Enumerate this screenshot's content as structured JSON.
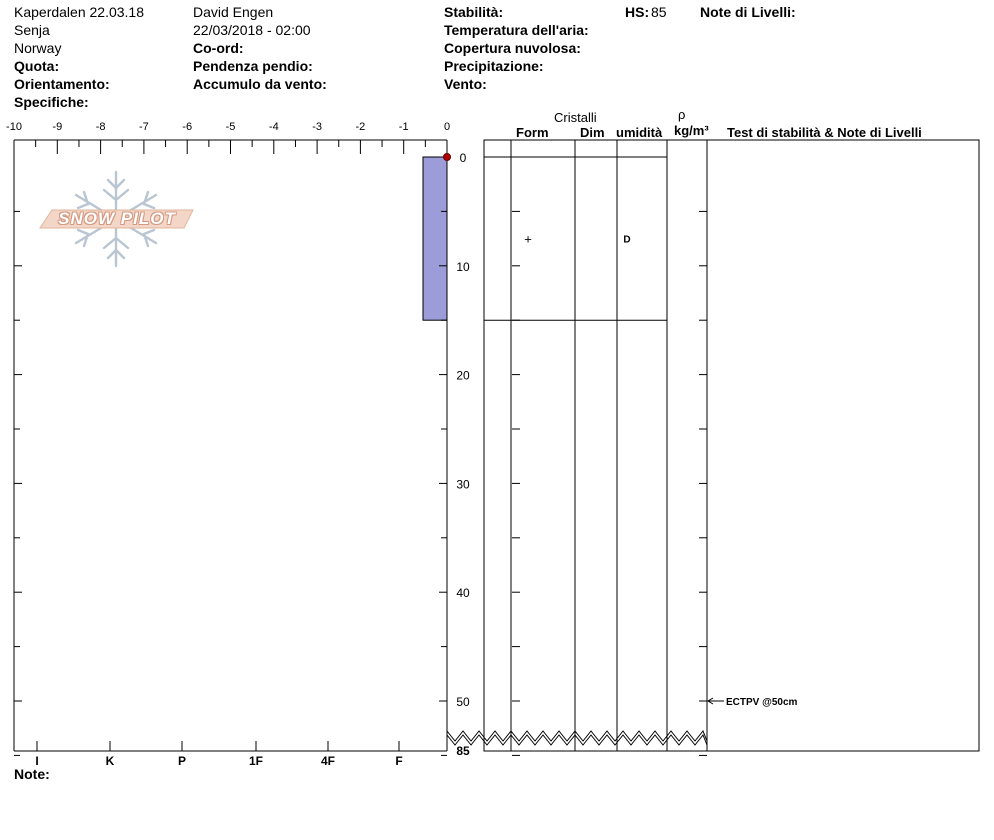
{
  "header": {
    "site": "Kaperdalen 22.03.18",
    "region": "Senja",
    "country": "Norway",
    "observer": "David Engen",
    "datetime": "22/03/2018 - 02:00",
    "quota_label": "Quota:",
    "orientamento_label": "Orientamento:",
    "specifiche_label": "Specifiche:",
    "coord_label": "Co-ord:",
    "pendenza_label": "Pendenza pendio:",
    "accumulo_label": "Accumulo da vento:",
    "stabilita_label": "Stabilità:",
    "temperatura_label": "Temperatura dell'aria:",
    "copertura_label": "Copertura nuvolosa:",
    "precipitazione_label": "Precipitazione:",
    "vento_label": "Vento:",
    "hs_label": "HS:",
    "hs_value": "85",
    "note_livelli_label": "Note di Livelli:"
  },
  "watermark": {
    "text": "SNOW PILOT",
    "icon": "snowflake-icon",
    "color": "#e8b8a0"
  },
  "table_headers": {
    "cristalli": "Cristalli",
    "form": "Form",
    "dim": "Dim",
    "umidita": "umidità",
    "rho": "ρ",
    "density_unit": "kg/m³",
    "test_notes": "Test di stabilità & Note di Livelli"
  },
  "chart_data": {
    "type": "bar",
    "temperature_axis": {
      "ticks": [
        "-10",
        "-9",
        "-8",
        "-7",
        "-6",
        "-5",
        "-4",
        "-3",
        "-2",
        "-1",
        "0"
      ],
      "range": [
        -10,
        0
      ]
    },
    "depth_axis": {
      "ticks": [
        "0",
        "10",
        "20",
        "30",
        "40",
        "50"
      ],
      "range": [
        0,
        56
      ],
      "break_label": "85",
      "inverted": true
    },
    "hardness_axis": {
      "ticks": [
        "I",
        "K",
        "P",
        "1F",
        "4F",
        "F"
      ]
    },
    "hardness_bars": [
      {
        "top": 0,
        "bottom": 15,
        "hardness": "F",
        "color": "#9c9cd8"
      }
    ],
    "surface_temperature": {
      "depth": 0,
      "temp": 0,
      "color": "#b00000"
    },
    "layers": [
      {
        "top": 0,
        "bottom": 15,
        "form_symbol": "+",
        "dim": "",
        "wetness": "D"
      }
    ],
    "layer_boundaries": [
      0,
      15
    ],
    "test_results": [
      {
        "depth": 50,
        "label": "ECTPV @50cm"
      }
    ]
  },
  "footer": {
    "note_label": "Note:"
  }
}
